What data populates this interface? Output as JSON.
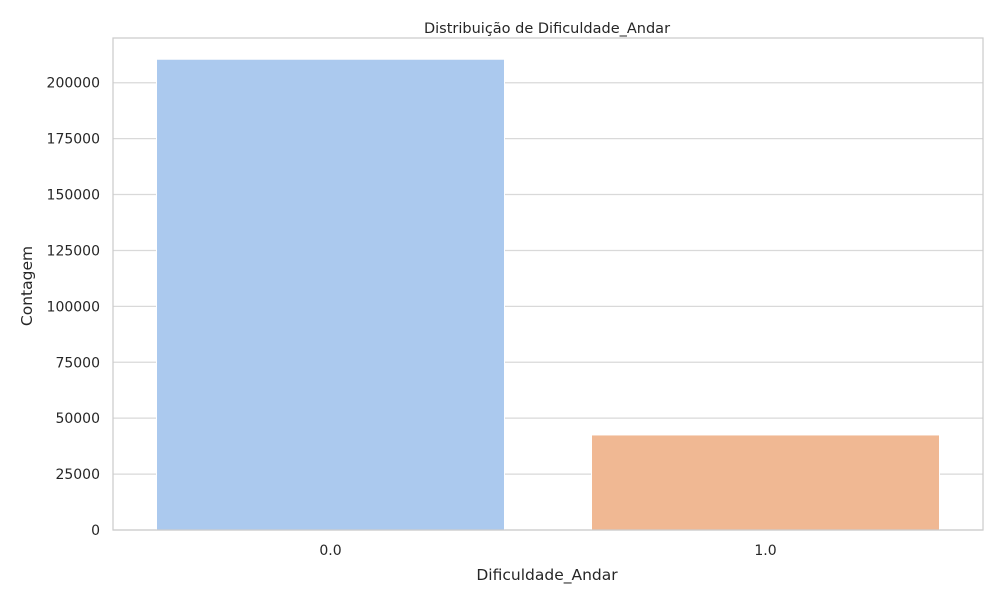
{
  "chart_data": {
    "type": "bar",
    "title": "Distribuição de Dificuldade_Andar",
    "xlabel": "Dificuldade_Andar",
    "ylabel": "Contagem",
    "categories": [
      "0.0",
      "1.0"
    ],
    "values": [
      210500,
      42500
    ],
    "ylim": [
      0,
      220000
    ],
    "yticks": [
      0,
      25000,
      50000,
      75000,
      100000,
      125000,
      150000,
      175000,
      200000
    ],
    "grid": "horizontal",
    "colors": [
      "#abc9ee",
      "#f0b893"
    ]
  }
}
